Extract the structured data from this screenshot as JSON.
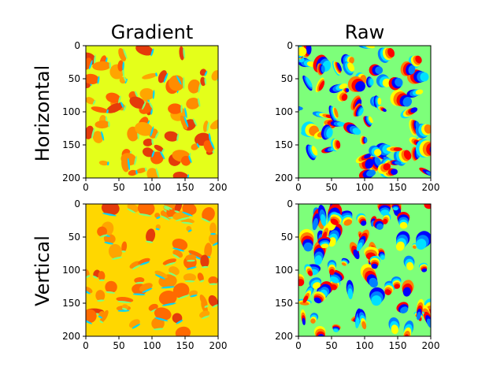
{
  "figure": {
    "column_titles": [
      "Gradient",
      "Raw"
    ],
    "row_titles": [
      "Horizontal",
      "Vertical"
    ]
  },
  "chart_data": [
    {
      "type": "heatmap",
      "title": "Gradient",
      "ylabel": "Horizontal",
      "xlim": [
        0,
        200
      ],
      "ylim": [
        200,
        0
      ],
      "xticks": [
        "0",
        "50",
        "100",
        "150",
        "200"
      ],
      "yticks": [
        "0",
        "50",
        "100",
        "150",
        "200"
      ],
      "colormap": "jet",
      "background_color": "#e4ff1a",
      "blob_colors": [
        "#ff8c00",
        "#ffa500",
        "#ff6000",
        "#e43b0a",
        "#00d6ff",
        "#7fff7a"
      ],
      "grid": false
    },
    {
      "type": "heatmap",
      "title": "Raw",
      "xlim": [
        0,
        200
      ],
      "ylim": [
        200,
        0
      ],
      "xticks": [
        "0",
        "50",
        "100",
        "150",
        "200"
      ],
      "yticks": [
        "0",
        "50",
        "100",
        "150",
        "200"
      ],
      "colormap": "jet",
      "background_color": "#7dff7a",
      "blob_colors": [
        "#0000ff",
        "#0080ff",
        "#00e0ff",
        "#ffff00",
        "#ff8000",
        "#ff0000"
      ],
      "grid": false
    },
    {
      "type": "heatmap",
      "ylabel": "Vertical",
      "xlim": [
        0,
        200
      ],
      "ylim": [
        200,
        0
      ],
      "xticks": [
        "0",
        "50",
        "100",
        "150",
        "200"
      ],
      "yticks": [
        "0",
        "50",
        "100",
        "150",
        "200"
      ],
      "colormap": "jet",
      "background_color": "#ffd700",
      "blob_colors": [
        "#ff8c00",
        "#ff6a00",
        "#e43b0a",
        "#ffa500",
        "#00d6ff",
        "#7fff7a"
      ],
      "grid": false
    },
    {
      "type": "heatmap",
      "xlim": [
        0,
        200
      ],
      "ylim": [
        200,
        0
      ],
      "xticks": [
        "0",
        "50",
        "100",
        "150",
        "200"
      ],
      "yticks": [
        "0",
        "50",
        "100",
        "150",
        "200"
      ],
      "colormap": "jet",
      "background_color": "#7dff7a",
      "blob_colors": [
        "#0000ff",
        "#0080ff",
        "#00e0ff",
        "#ffff00",
        "#ff8000",
        "#ff0000"
      ],
      "grid": false
    }
  ]
}
